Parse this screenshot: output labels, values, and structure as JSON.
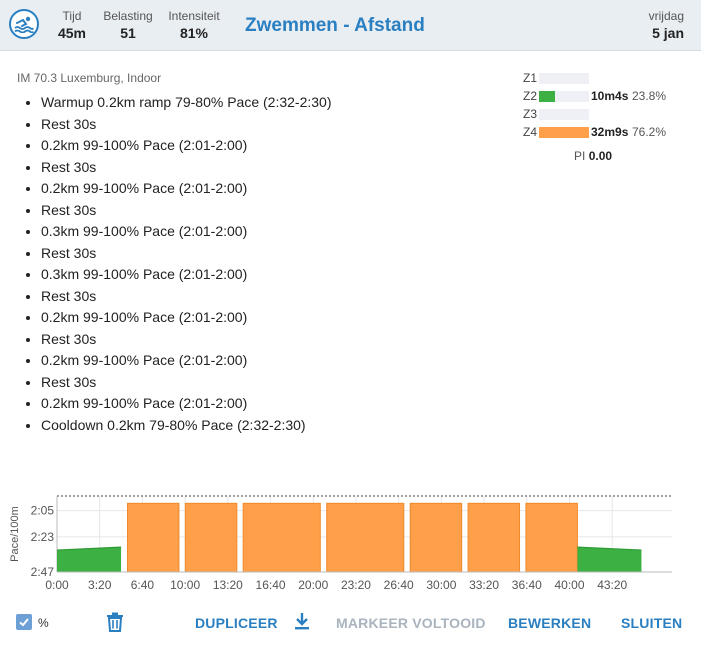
{
  "header": {
    "sport_icon": "swim-icon",
    "stats": [
      {
        "label": "Tijd",
        "value": "45m"
      },
      {
        "label": "Belasting",
        "value": "51"
      },
      {
        "label": "Intensiteit",
        "value": "81%"
      }
    ],
    "title": "Zwemmen - Afstand",
    "day_label": "vrijdag",
    "date": "5 jan"
  },
  "plan": {
    "name": "IM 70.3 Luxemburg, Indoor",
    "steps": [
      "Warmup 0.2km ramp 79-80% Pace (2:32-2:30)",
      "Rest 30s",
      "0.2km 99-100% Pace (2:01-2:00)",
      "Rest 30s",
      "0.2km 99-100% Pace (2:01-2:00)",
      "Rest 30s",
      "0.3km 99-100% Pace (2:01-2:00)",
      "Rest 30s",
      "0.3km 99-100% Pace (2:01-2:00)",
      "Rest 30s",
      "0.2km 99-100% Pace (2:01-2:00)",
      "Rest 30s",
      "0.2km 99-100% Pace (2:01-2:00)",
      "Rest 30s",
      "0.2km 99-100% Pace (2:01-2:00)",
      "Cooldown 0.2km 79-80% Pace (2:32-2:30)"
    ]
  },
  "zones": [
    {
      "label": "Z1",
      "time": "",
      "pct": "",
      "fraction": 0,
      "color": "#eef0f5"
    },
    {
      "label": "Z2",
      "time": "10m4s",
      "pct": "23.8%",
      "fraction": 0.32,
      "color": "#3cb043"
    },
    {
      "label": "Z3",
      "time": "",
      "pct": "",
      "fraction": 0,
      "color": "#eef0f5"
    },
    {
      "label": "Z4",
      "time": "32m9s",
      "pct": "76.2%",
      "fraction": 1.0,
      "color": "#ff9f4a"
    }
  ],
  "pi": {
    "label": "PI",
    "value": "0.00"
  },
  "chart_data": {
    "type": "area",
    "ylabel": "Pace/100m",
    "y_ticks": [
      "2:05",
      "2:23",
      "2:47"
    ],
    "x_ticks": [
      "0:00",
      "3:20",
      "6:40",
      "10:00",
      "13:20",
      "16:40",
      "20:00",
      "23:20",
      "26:40",
      "30:00",
      "33:20",
      "36:40",
      "40:00",
      "43:20"
    ],
    "xlim_seconds": [
      0,
      2880
    ],
    "ylim_pace_seconds": [
      167,
      115
    ],
    "segments": [
      {
        "kind": "ramp",
        "start": 0,
        "end": 300,
        "pace_start": 152,
        "pace_end": 150,
        "color": "#3cb043"
      },
      {
        "kind": "work",
        "start": 330,
        "end": 571,
        "pace": 120,
        "color": "#ff9f4a"
      },
      {
        "kind": "work",
        "start": 601,
        "end": 842,
        "pace": 120,
        "color": "#ff9f4a"
      },
      {
        "kind": "work",
        "start": 872,
        "end": 1233,
        "pace": 120,
        "color": "#ff9f4a"
      },
      {
        "kind": "work",
        "start": 1263,
        "end": 1624,
        "pace": 120,
        "color": "#ff9f4a"
      },
      {
        "kind": "work",
        "start": 1654,
        "end": 1895,
        "pace": 120,
        "color": "#ff9f4a"
      },
      {
        "kind": "work",
        "start": 1925,
        "end": 2166,
        "pace": 120,
        "color": "#ff9f4a"
      },
      {
        "kind": "work",
        "start": 2196,
        "end": 2437,
        "pace": 120,
        "color": "#ff9f4a"
      },
      {
        "kind": "cooldown",
        "start": 2437,
        "end": 2737,
        "pace_start": 150,
        "pace_end": 152,
        "color": "#3cb043"
      }
    ]
  },
  "actions": {
    "percent_label": "%",
    "percent_checked": true,
    "duplicate": "DUPLICEER",
    "mark_done": "MARKEER VOLTOOID",
    "edit": "BEWERKEN",
    "close": "SLUITEN"
  },
  "colors": {
    "accent": "#2a7fc1",
    "z2": "#3cb043",
    "z4": "#ff9f4a"
  }
}
